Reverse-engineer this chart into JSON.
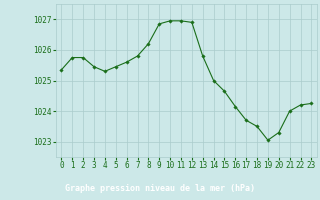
{
  "x": [
    0,
    1,
    2,
    3,
    4,
    5,
    6,
    7,
    8,
    9,
    10,
    11,
    12,
    13,
    14,
    15,
    16,
    17,
    18,
    19,
    20,
    21,
    22,
    23
  ],
  "y": [
    1025.35,
    1025.75,
    1025.75,
    1025.45,
    1025.3,
    1025.45,
    1025.6,
    1025.8,
    1026.2,
    1026.85,
    1026.95,
    1026.95,
    1026.9,
    1025.8,
    1025.0,
    1024.65,
    1024.15,
    1023.7,
    1023.5,
    1023.05,
    1023.3,
    1024.0,
    1024.2,
    1024.25
  ],
  "ylim": [
    1022.5,
    1027.5
  ],
  "yticks": [
    1023,
    1024,
    1025,
    1026,
    1027
  ],
  "xticks": [
    0,
    1,
    2,
    3,
    4,
    5,
    6,
    7,
    8,
    9,
    10,
    11,
    12,
    13,
    14,
    15,
    16,
    17,
    18,
    19,
    20,
    21,
    22,
    23
  ],
  "line_color": "#1a6e1a",
  "marker": "D",
  "marker_size": 1.8,
  "line_width": 0.8,
  "bg_color": "#cce8e8",
  "grid_color": "#aacccc",
  "bottom_bar_color": "#2a7a2a",
  "title": "Graphe pression niveau de la mer (hPa)",
  "title_color": "#ffffff",
  "title_fontsize": 6.0,
  "tick_color": "#1a6e1a",
  "tick_fontsize": 5.5
}
